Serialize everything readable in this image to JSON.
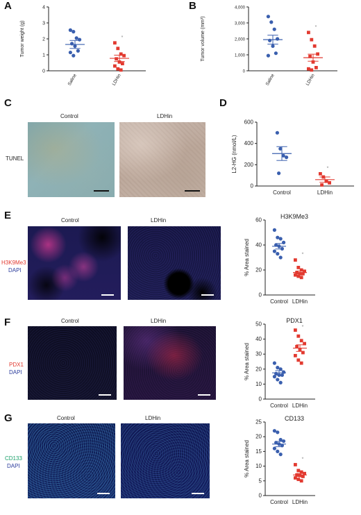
{
  "letters": {
    "A": "A",
    "B": "B",
    "C": "C",
    "D": "D",
    "E": "E",
    "F": "F",
    "G": "G"
  },
  "colors": {
    "blue": "#3a5fae",
    "red": "#e23a30"
  },
  "panelC": {
    "control": "Control",
    "ldhin": "LDHin",
    "stain": "TUNEL"
  },
  "panelE": {
    "control": "Control",
    "ldhin": "LDHin",
    "stain1": "H3K9Me3",
    "stain2": "DAPI"
  },
  "panelF": {
    "control": "Control",
    "ldhin": "LDHin",
    "stain1": "PDX1",
    "stain2": "DAPI"
  },
  "panelG": {
    "control": "Control",
    "ldhin": "LDHin",
    "stain1": "CD133",
    "stain2": "DAPI"
  },
  "chart_data": [
    {
      "id": "A",
      "type": "scatter",
      "ylabel": "Tumor weight (g)",
      "ylim": [
        0,
        4
      ],
      "yticks": [
        "0",
        "1",
        "2",
        "3",
        "4"
      ],
      "categories": [
        "Saline",
        "LDHin"
      ],
      "mean": [
        1.65,
        0.78
      ],
      "sem": [
        0.25,
        0.2
      ],
      "sig": "*",
      "series": [
        {
          "values": [
            2.55,
            2.45,
            2.05,
            1.95,
            1.7,
            1.55,
            1.25,
            1.15,
            0.95
          ]
        },
        {
          "values": [
            1.75,
            1.4,
            1.05,
            0.95,
            0.75,
            0.55,
            0.45,
            0.3,
            0.12,
            0.05
          ]
        }
      ]
    },
    {
      "id": "B",
      "type": "scatter",
      "ylabel": "Tumor volume (mm³)",
      "ylim": [
        0,
        4000
      ],
      "yticks": [
        "0",
        "1,000",
        "2,000",
        "3,000",
        "4,000"
      ],
      "categories": [
        "Saline",
        "LDHin"
      ],
      "mean": [
        1950,
        820
      ],
      "sem": [
        280,
        220
      ],
      "sig": "*",
      "series": [
        {
          "values": [
            3400,
            3050,
            2600,
            2000,
            1900,
            1550,
            1100,
            950
          ]
        },
        {
          "values": [
            2400,
            1950,
            1550,
            1050,
            900,
            550,
            200,
            120,
            50
          ]
        }
      ]
    },
    {
      "id": "D",
      "type": "scatter",
      "ylabel": "L2-HG (nmol/L)",
      "ylim": [
        0,
        600
      ],
      "yticks": [
        "0",
        "200",
        "400",
        "600"
      ],
      "categories": [
        "Control",
        "LDHin"
      ],
      "mean": [
        305,
        60
      ],
      "sem": [
        65,
        25
      ],
      "sig": "*",
      "series": [
        {
          "values": [
            500,
            350,
            285,
            270,
            120
          ]
        },
        {
          "values": [
            115,
            85,
            45,
            30,
            10
          ]
        }
      ]
    },
    {
      "id": "E",
      "type": "scatter",
      "title": "H3K9Me3",
      "ylabel": "% Area stained",
      "ylim": [
        0,
        60
      ],
      "yticks": [
        "0",
        "20",
        "40",
        "60"
      ],
      "categories": [
        "Control",
        "LDHin"
      ],
      "mean": [
        39,
        18
      ],
      "sem": [
        2.2,
        1.2
      ],
      "sig": "*",
      "series": [
        {
          "values": [
            52,
            46,
            45,
            42,
            40,
            39,
            37,
            35,
            33,
            30
          ]
        },
        {
          "values": [
            28,
            22,
            20,
            19,
            18,
            17,
            17,
            16,
            15,
            14
          ]
        }
      ]
    },
    {
      "id": "F",
      "type": "scatter",
      "title": "PDX1",
      "ylabel": "% Area stained",
      "ylim": [
        0,
        50
      ],
      "yticks": [
        "0",
        "10",
        "20",
        "30",
        "40",
        "50"
      ],
      "categories": [
        "Control",
        "LDHin"
      ],
      "mean": [
        17.5,
        34
      ],
      "sem": [
        1.5,
        2.2
      ],
      "sig": "*",
      "series": [
        {
          "values": [
            24,
            21,
            20,
            18,
            17,
            16,
            16,
            15,
            13,
            11
          ]
        },
        {
          "values": [
            46,
            42,
            39,
            37,
            35,
            33,
            31,
            29,
            26,
            24
          ]
        }
      ]
    },
    {
      "id": "G",
      "type": "scatter",
      "title": "CD133",
      "ylabel": "% Area stained",
      "ylim": [
        0,
        25
      ],
      "yticks": [
        "0",
        "5",
        "10",
        "15",
        "20",
        "25"
      ],
      "categories": [
        "Control",
        "LDHin"
      ],
      "mean": [
        17.5,
        7
      ],
      "sem": [
        0.9,
        0.5
      ],
      "sig": "*",
      "series": [
        {
          "values": [
            22,
            21.5,
            19,
            18.5,
            18,
            17.5,
            17,
            16,
            15,
            14
          ]
        },
        {
          "values": [
            10.5,
            8.5,
            8,
            7.5,
            7,
            6.8,
            6.5,
            6,
            5.5,
            5
          ]
        }
      ]
    }
  ]
}
